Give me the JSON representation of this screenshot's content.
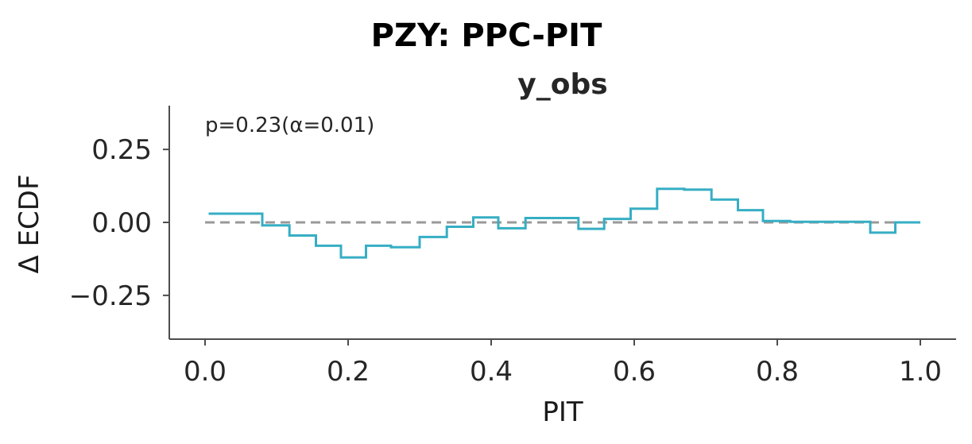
{
  "chart_data": {
    "type": "line",
    "title": "PZY: PPC-PIT",
    "subtitle": "y_obs",
    "xlabel": "PIT",
    "ylabel": "Δ ECDF",
    "xlim": [
      -0.05,
      1.05
    ],
    "ylim": [
      -0.4,
      0.4
    ],
    "xticks": [
      0.0,
      0.2,
      0.4,
      0.6,
      0.8,
      1.0
    ],
    "xtick_labels": [
      "0.0",
      "0.2",
      "0.4",
      "0.6",
      "0.8",
      "1.0"
    ],
    "yticks": [
      0.25,
      0.0,
      -0.25
    ],
    "ytick_labels": [
      "0.25",
      "0.00",
      "−0.25"
    ],
    "annotation": "p=0.23(α=0.01)",
    "grid": false,
    "reference_line": {
      "y": 0.0,
      "style": "dashed",
      "color": "#999999"
    },
    "series": [
      {
        "style": "step",
        "color": "#36aec4",
        "x": [
          0.005,
          0.08,
          0.08,
          0.118,
          0.118,
          0.155,
          0.155,
          0.19,
          0.19,
          0.225,
          0.225,
          0.26,
          0.26,
          0.3,
          0.3,
          0.338,
          0.338,
          0.375,
          0.375,
          0.41,
          0.41,
          0.448,
          0.448,
          0.485,
          0.485,
          0.522,
          0.522,
          0.558,
          0.558,
          0.595,
          0.595,
          0.632,
          0.632,
          0.67,
          0.67,
          0.708,
          0.708,
          0.745,
          0.745,
          0.78,
          0.78,
          0.818,
          0.818,
          0.855,
          0.855,
          0.93,
          0.93,
          0.965,
          0.965,
          1.0
        ],
        "y": [
          0.03,
          0.03,
          -0.01,
          -0.01,
          -0.045,
          -0.045,
          -0.08,
          -0.08,
          -0.12,
          -0.12,
          -0.08,
          -0.08,
          -0.085,
          -0.085,
          -0.05,
          -0.05,
          -0.015,
          -0.015,
          0.017,
          0.017,
          -0.02,
          -0.02,
          0.015,
          0.015,
          0.015,
          0.015,
          -0.022,
          -0.022,
          0.012,
          0.012,
          0.047,
          0.047,
          0.115,
          0.115,
          0.112,
          0.112,
          0.078,
          0.078,
          0.042,
          0.042,
          0.005,
          0.005,
          0.002,
          0.002,
          0.002,
          0.002,
          -0.035,
          -0.035,
          0.0,
          0.0
        ]
      }
    ],
    "colors": {
      "axis": "#4d4d4d",
      "series": "#36aec4",
      "reference": "#999999"
    }
  }
}
